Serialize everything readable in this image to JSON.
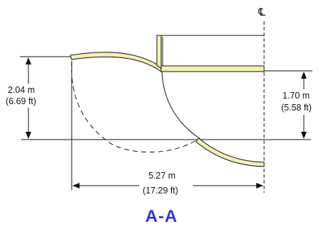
{
  "diagram": {
    "centerline_label": "℄",
    "left_height": {
      "metric": "2.04 m",
      "imperial": "(6.69 ft)"
    },
    "right_height": {
      "metric": "1.70 m",
      "imperial": "(5.58 ft)"
    },
    "width": {
      "metric": "5.27 m",
      "imperial": "(17.29 ft)"
    },
    "section_label": "A-A"
  },
  "colors": {
    "line": "#111111",
    "panel_fill": "#f6efb4",
    "title": "#2b35e0"
  }
}
